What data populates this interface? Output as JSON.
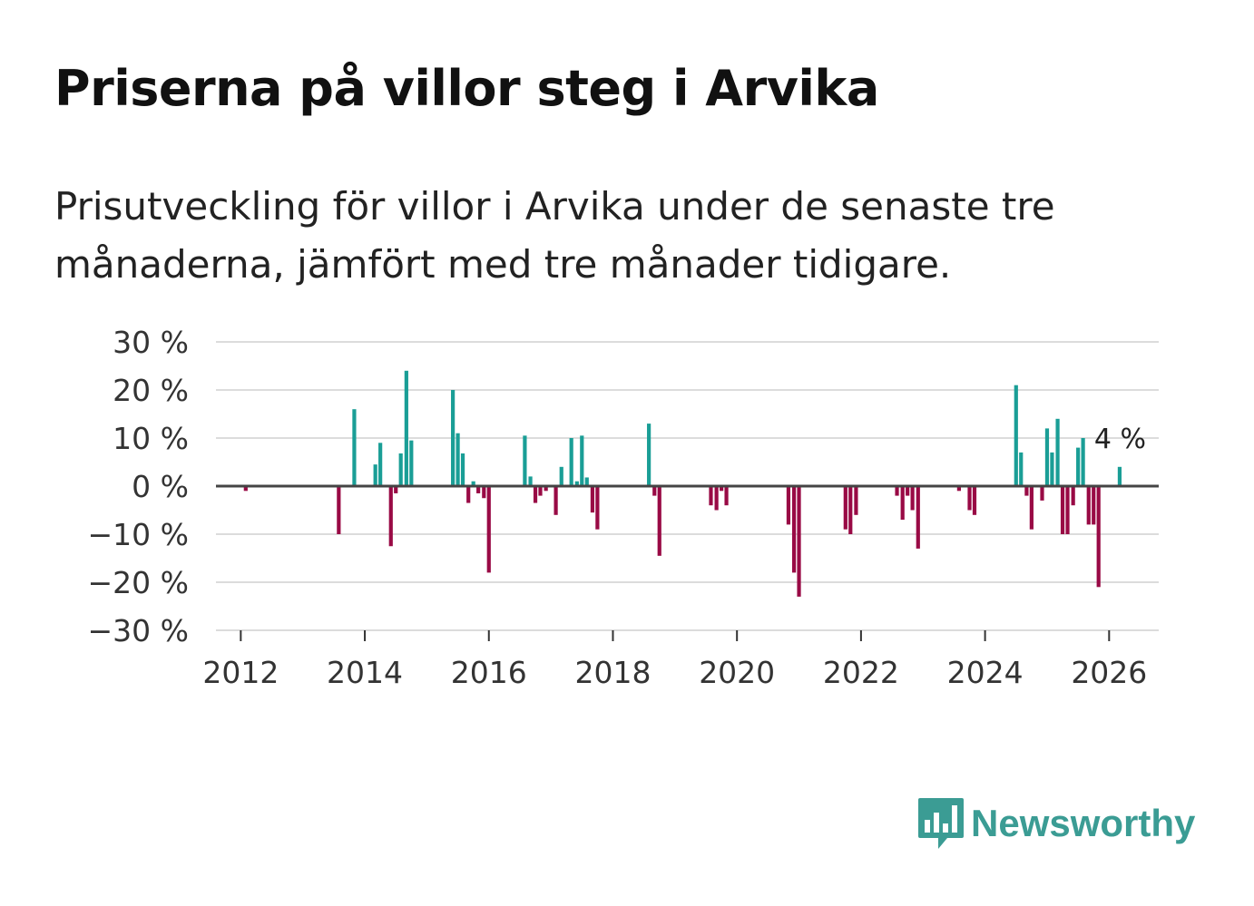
{
  "title": "Priserna på villor steg i Arvika",
  "subtitle": "Prisutveckling för villor i Arvika under de senaste tre månaderna, jämfört med tre månader tidigare.",
  "logo": {
    "text": "Newsworthy",
    "icon": "newsworthy-chart-icon"
  },
  "colors": {
    "positive": "#1a9e96",
    "negative": "#990a45",
    "grid": "#dcdcdc",
    "zero": "#444444",
    "logo": "#3b9c94"
  },
  "chart_data": {
    "type": "bar",
    "title": "Priserna på villor steg i Arvika",
    "xlabel": "",
    "ylabel": "",
    "ylim": [
      -30,
      30
    ],
    "xlim": [
      2011.6,
      2026.8
    ],
    "yticks": [
      30,
      20,
      10,
      0,
      -10,
      -20,
      -30
    ],
    "ytick_labels": [
      "30 %",
      "20 %",
      "10 %",
      "0 %",
      "−10 %",
      "−20 %",
      "−30 %"
    ],
    "xticks": [
      2012,
      2014,
      2016,
      2018,
      2020,
      2022,
      2024,
      2026
    ],
    "xtick_labels": [
      "2012",
      "2014",
      "2016",
      "2018",
      "2020",
      "2022",
      "2024",
      "2026"
    ],
    "annotation": {
      "text": "4 %",
      "x": 2026.17,
      "value": 4
    },
    "series": [
      {
        "name": "Prisutveckling (%)",
        "points": [
          {
            "x": 2012.08,
            "y": -1
          },
          {
            "x": 2013.58,
            "y": -10
          },
          {
            "x": 2013.83,
            "y": 16
          },
          {
            "x": 2014.17,
            "y": 4.5
          },
          {
            "x": 2014.25,
            "y": 9
          },
          {
            "x": 2014.42,
            "y": -12.5
          },
          {
            "x": 2014.5,
            "y": -1.5
          },
          {
            "x": 2014.58,
            "y": 6.8
          },
          {
            "x": 2014.67,
            "y": 24
          },
          {
            "x": 2014.75,
            "y": 9.5
          },
          {
            "x": 2015.42,
            "y": 20
          },
          {
            "x": 2015.5,
            "y": 11
          },
          {
            "x": 2015.58,
            "y": 6.8
          },
          {
            "x": 2015.67,
            "y": -3.5
          },
          {
            "x": 2015.75,
            "y": 1
          },
          {
            "x": 2015.83,
            "y": -1.5
          },
          {
            "x": 2015.92,
            "y": -2.5
          },
          {
            "x": 2016.0,
            "y": -18
          },
          {
            "x": 2016.58,
            "y": 10.5
          },
          {
            "x": 2016.67,
            "y": 2
          },
          {
            "x": 2016.75,
            "y": -3.5
          },
          {
            "x": 2016.83,
            "y": -2
          },
          {
            "x": 2016.92,
            "y": -1
          },
          {
            "x": 2017.08,
            "y": -6
          },
          {
            "x": 2017.17,
            "y": 4
          },
          {
            "x": 2017.33,
            "y": 10
          },
          {
            "x": 2017.42,
            "y": 1
          },
          {
            "x": 2017.5,
            "y": 10.5
          },
          {
            "x": 2017.58,
            "y": 1.8
          },
          {
            "x": 2017.67,
            "y": -5.5
          },
          {
            "x": 2017.75,
            "y": -9
          },
          {
            "x": 2018.58,
            "y": 13
          },
          {
            "x": 2018.67,
            "y": -2
          },
          {
            "x": 2018.75,
            "y": -14.5
          },
          {
            "x": 2019.58,
            "y": -4
          },
          {
            "x": 2019.67,
            "y": -5
          },
          {
            "x": 2019.75,
            "y": -1
          },
          {
            "x": 2019.83,
            "y": -4
          },
          {
            "x": 2020.83,
            "y": -8
          },
          {
            "x": 2020.92,
            "y": -18
          },
          {
            "x": 2021.0,
            "y": -23
          },
          {
            "x": 2021.75,
            "y": -9
          },
          {
            "x": 2021.83,
            "y": -10
          },
          {
            "x": 2021.92,
            "y": -6
          },
          {
            "x": 2022.58,
            "y": -2
          },
          {
            "x": 2022.67,
            "y": -7
          },
          {
            "x": 2022.75,
            "y": -2
          },
          {
            "x": 2022.83,
            "y": -5
          },
          {
            "x": 2022.92,
            "y": -13
          },
          {
            "x": 2023.58,
            "y": -1
          },
          {
            "x": 2023.75,
            "y": -5
          },
          {
            "x": 2023.83,
            "y": -6
          },
          {
            "x": 2024.5,
            "y": 21
          },
          {
            "x": 2024.58,
            "y": 7
          },
          {
            "x": 2024.67,
            "y": -2
          },
          {
            "x": 2024.75,
            "y": -9
          },
          {
            "x": 2024.92,
            "y": -3
          },
          {
            "x": 2025.0,
            "y": 12
          },
          {
            "x": 2025.08,
            "y": 7
          },
          {
            "x": 2025.17,
            "y": 14
          },
          {
            "x": 2025.25,
            "y": -10
          },
          {
            "x": 2025.33,
            "y": -10
          },
          {
            "x": 2025.42,
            "y": -4
          },
          {
            "x": 2025.5,
            "y": 8
          },
          {
            "x": 2025.58,
            "y": 10
          },
          {
            "x": 2025.67,
            "y": -8
          },
          {
            "x": 2025.75,
            "y": -8
          },
          {
            "x": 2025.83,
            "y": -21
          },
          {
            "x": 2026.17,
            "y": 4
          }
        ]
      }
    ]
  }
}
